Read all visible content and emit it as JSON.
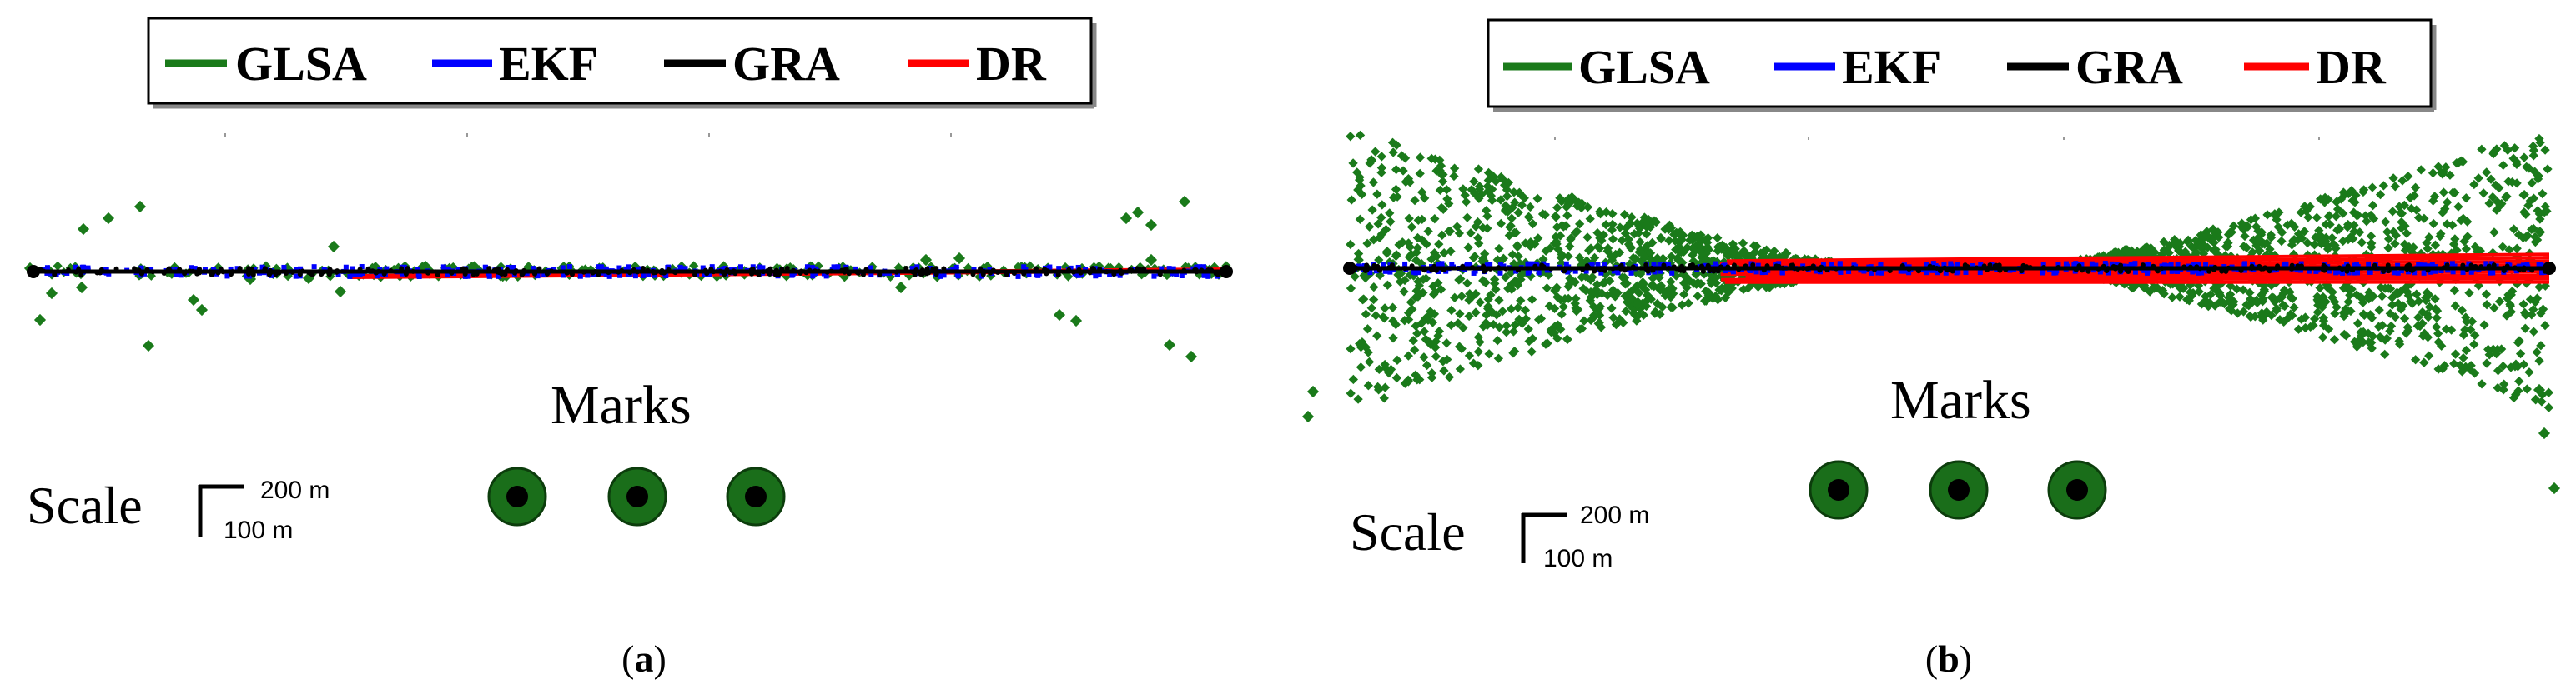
{
  "colors": {
    "GLSA": "#1a7a1a",
    "EKF": "#0000ff",
    "GRA": "#000000",
    "DR": "#ff0000",
    "mark_fill": "#1a6e1a",
    "mark_center": "#000000"
  },
  "chart_data": [
    {
      "type": "scatter",
      "panel": "a",
      "caption_letter": "a",
      "legend": {
        "placement": "top-center",
        "entries": [
          "GLSA",
          "EKF",
          "GRA",
          "DR"
        ]
      },
      "marks_label": "Marks",
      "marks_count": 3,
      "scale": {
        "label": "Scale",
        "vertical": "200 m",
        "horizontal": "100 m"
      },
      "glsa_spread": "low",
      "grid": false
    },
    {
      "type": "scatter",
      "panel": "b",
      "caption_letter": "b",
      "legend": {
        "placement": "top-center",
        "entries": [
          "GLSA",
          "EKF",
          "GRA",
          "DR"
        ]
      },
      "marks_label": "Marks",
      "marks_count": 3,
      "scale": {
        "label": "Scale",
        "vertical": "200 m",
        "horizontal": "100 m"
      },
      "glsa_spread": "high",
      "grid": false
    }
  ]
}
